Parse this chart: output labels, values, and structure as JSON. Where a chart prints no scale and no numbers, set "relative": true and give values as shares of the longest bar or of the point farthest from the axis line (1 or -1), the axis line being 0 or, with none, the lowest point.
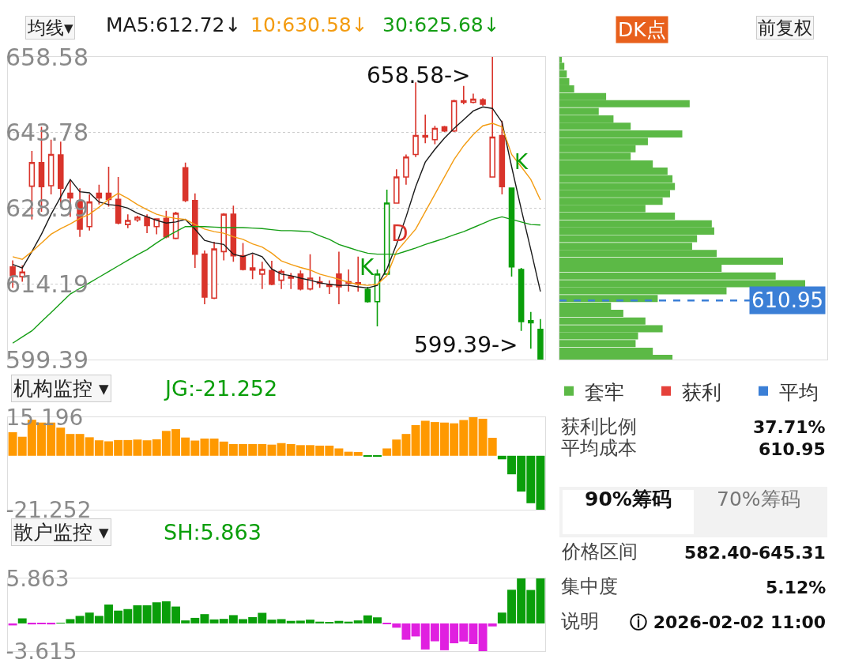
{
  "chart_data": [
    {
      "type": "candlestick",
      "categories": [
        null,
        null,
        null,
        null,
        null,
        null,
        null,
        null,
        null,
        null,
        null,
        null,
        null,
        null,
        null,
        null,
        null,
        null,
        null,
        null,
        null,
        null,
        null,
        null,
        null,
        null,
        null,
        null,
        null,
        null,
        null,
        null,
        null,
        null,
        null,
        null,
        null,
        null,
        null,
        null,
        null,
        null,
        null,
        null,
        null,
        null,
        null,
        null,
        null,
        null,
        null,
        null,
        null,
        null,
        null,
        null
      ],
      "ohlc": [
        [
          617.5,
          618.8,
          613.4,
          615.8
        ],
        [
          615.6,
          617.8,
          614.6,
          616.5
        ],
        [
          633.3,
          640.2,
          626.8,
          637.9
        ],
        [
          637.9,
          644.9,
          628.3,
          633.2
        ],
        [
          633.4,
          642.4,
          631.7,
          639.5
        ],
        [
          639.4,
          642.0,
          629.7,
          632.9
        ],
        [
          631.9,
          634.6,
          627.3,
          631.0
        ],
        [
          630.5,
          632.9,
          623.4,
          624.9
        ],
        [
          625.4,
          631.7,
          624.6,
          630.2
        ],
        [
          631.9,
          633.6,
          629.7,
          631.0
        ],
        [
          631.9,
          637.1,
          629.3,
          630.7
        ],
        [
          630.7,
          635.1,
          625.8,
          626.1
        ],
        [
          625.8,
          627.8,
          625.1,
          626.6
        ],
        [
          626.7,
          627.5,
          626.3,
          627.2
        ],
        [
          627.2,
          627.8,
          624.1,
          625.6
        ],
        [
          625.4,
          627.0,
          623.9,
          626.9
        ],
        [
          627.0,
          628.5,
          623.1,
          623.4
        ],
        [
          623.1,
          628.3,
          622.9,
          628.0
        ],
        [
          636.9,
          637.9,
          630.2,
          630.5
        ],
        [
          630.5,
          631.9,
          617.3,
          620.0
        ],
        [
          620.0,
          620.7,
          610.2,
          611.6
        ],
        [
          611.4,
          622.4,
          611.2,
          621.0
        ],
        [
          620.5,
          628.0,
          618.8,
          627.8
        ],
        [
          627.8,
          629.5,
          618.5,
          619.7
        ],
        [
          619.7,
          622.2,
          616.8,
          617.0
        ],
        [
          616.9,
          620.0,
          615.1,
          617.3
        ],
        [
          616.1,
          618.5,
          613.2,
          617.0
        ],
        [
          616.8,
          618.7,
          613.9,
          614.1
        ],
        [
          614.9,
          617.0,
          613.2,
          616.6
        ],
        [
          615.3,
          616.3,
          613.2,
          615.6
        ],
        [
          616.1,
          616.8,
          612.9,
          613.2
        ],
        [
          613.2,
          620.0,
          612.9,
          615.3
        ],
        [
          614.3,
          615.6,
          613.4,
          614.6
        ],
        [
          614.0,
          614.9,
          612.2,
          613.7
        ],
        [
          616.1,
          620.5,
          610.2,
          613.6
        ],
        [
          614.3,
          617.0,
          612.7,
          614.6
        ],
        [
          614.4,
          619.5,
          612.7,
          614.1
        ],
        [
          613.1,
          613.6,
          610.5,
          610.7
        ],
        [
          610.7,
          617.0,
          605.9,
          616.1
        ],
        [
          616.1,
          632.6,
          616.1,
          630.0
        ],
        [
          630.0,
          636.6,
          630.0,
          635.1
        ],
        [
          635.1,
          639.5,
          633.6,
          639.0
        ],
        [
          639.5,
          653.6,
          639.0,
          643.2
        ],
        [
          642.9,
          647.3,
          641.7,
          643.2
        ],
        [
          642.4,
          645.1,
          641.5,
          644.6
        ],
        [
          644.9,
          645.1,
          643.9,
          644.1
        ],
        [
          644.1,
          650.2,
          643.9,
          650.0
        ],
        [
          649.7,
          652.9,
          649.3,
          650.0
        ],
        [
          649.7,
          651.4,
          649.5,
          650.3
        ],
        [
          650.2,
          650.5,
          649.0,
          649.3
        ],
        [
          635.1,
          658.58,
          635.1,
          642.9
        ],
        [
          643.2,
          646.1,
          631.7,
          633.2
        ],
        [
          632.9,
          632.9,
          615.6,
          617.5
        ],
        [
          617.0,
          617.3,
          605.0,
          606.8
        ],
        [
          607.0,
          608.7,
          601.5,
          606.6
        ],
        [
          605.3,
          607.3,
          599.39,
          599.39
        ]
      ],
      "colors": [
        "#d9342b",
        "#d9342b",
        "#d9342b",
        "#d9342b",
        "#d9342b",
        "#d9342b",
        "#d9342b",
        "#d9342b",
        "#d9342b",
        "#d9342b",
        "#d9342b",
        "#d9342b",
        "#d9342b",
        "#d9342b",
        "#d9342b",
        "#d9342b",
        "#d9342b",
        "#d9342b",
        "#d9342b",
        "#d9342b",
        "#d9342b",
        "#d9342b",
        "#d9342b",
        "#d9342b",
        "#d9342b",
        "#d9342b",
        "#d9342b",
        "#d9342b",
        "#d9342b",
        "#d9342b",
        "#d9342b",
        "#d9342b",
        "#d9342b",
        "#d9342b",
        "#d9342b",
        "#d9342b",
        "#d9342b",
        "#0a9e0a",
        "#0a9e0a",
        "#0a9e0a",
        "#d9342b",
        "#d9342b",
        "#d9342b",
        "#d9342b",
        "#d9342b",
        "#d9342b",
        "#d9342b",
        "#d9342b",
        "#d9342b",
        "#d9342b",
        "#d9342b",
        "#d9342b",
        "#0a9e0a",
        "#0a9e0a",
        "#0a9e0a",
        "#0a9e0a"
      ],
      "series": [
        {
          "name": "MA5:612.72↓",
          "type": "line",
          "color": "#1a1a1a",
          "values": [
            618.0,
            617.3,
            620.5,
            623.9,
            627.8,
            631.2,
            634.6,
            632.2,
            632.0,
            630.2,
            629.7,
            629.5,
            629.0,
            628.0,
            627.3,
            626.6,
            626.1,
            626.3,
            626.8,
            624.9,
            622.7,
            622.2,
            621.9,
            620.0,
            619.5,
            620.2,
            619.5,
            617.1,
            616.1,
            615.8,
            615.3,
            614.9,
            614.4,
            614.1,
            613.9,
            613.9,
            613.6,
            613.4,
            613.9,
            617.1,
            621.9,
            627.3,
            633.2,
            638.0,
            640.5,
            642.7,
            644.6,
            646.3,
            648.0,
            648.8,
            648.5,
            645.8,
            637.1,
            628.8,
            620.9,
            612.7
          ]
        },
        {
          "name": "10:630.58↓",
          "type": "line",
          "color": "#f39c12",
          "values": [
            619.5,
            619.0,
            620.5,
            622.2,
            623.9,
            625.0,
            625.9,
            627.0,
            627.8,
            629.2,
            630.7,
            631.9,
            630.9,
            629.7,
            628.7,
            627.8,
            627.3,
            627.0,
            626.8,
            625.8,
            624.9,
            624.4,
            624.1,
            623.4,
            622.9,
            622.0,
            621.4,
            620.2,
            618.7,
            618.0,
            617.4,
            616.9,
            616.1,
            615.6,
            615.1,
            614.5,
            614.1,
            613.9,
            614.1,
            615.8,
            620.5,
            622.7,
            624.9,
            628.3,
            631.7,
            635.1,
            638.5,
            641.2,
            643.4,
            645.1,
            645.6,
            644.9,
            639.5,
            637.1,
            634.6,
            630.6
          ]
        },
        {
          "name": "30:625.68↓",
          "type": "line",
          "color": "#159e15",
          "values": [
            602.6,
            603.8,
            605.0,
            606.8,
            608.6,
            610.4,
            612.2,
            613.3,
            614.4,
            615.5,
            616.6,
            617.7,
            618.8,
            619.9,
            620.9,
            622.2,
            623.4,
            624.4,
            625.4,
            625.4,
            625.4,
            625.3,
            625.2,
            625.2,
            625.2,
            625.1,
            625.0,
            624.8,
            624.6,
            624.6,
            624.5,
            624.4,
            623.6,
            622.9,
            621.9,
            621.3,
            620.7,
            620.2,
            620.0,
            620.0,
            620.0,
            620.6,
            621.2,
            621.9,
            622.5,
            623.1,
            623.8,
            624.4,
            625.2,
            626.0,
            626.8,
            627.3,
            626.8,
            626.3,
            625.8,
            625.7
          ]
        }
      ],
      "ylim": [
        599.39,
        658.58
      ],
      "yticks": [
        658.58,
        643.78,
        628.99,
        614.19,
        599.39
      ],
      "grid": "y",
      "tick_labels": "y",
      "legend": "top",
      "annotations": [
        "均线▾",
        "658.58->",
        "599.39->",
        "K",
        "D",
        "K",
        "DK点",
        "前复权"
      ]
    },
    {
      "type": "bar",
      "orientation": "horizontal",
      "relative": true,
      "x": [
        658.5,
        657.1,
        655.6,
        654.1,
        652.7,
        651.2,
        649.8,
        648.3,
        646.8,
        645.4,
        643.9,
        642.4,
        641.0,
        639.5,
        638.0,
        636.6,
        635.1,
        633.6,
        632.2,
        630.7,
        629.3,
        627.8,
        626.3,
        624.9,
        623.4,
        621.9,
        620.5,
        619.0,
        617.6,
        616.1,
        614.6,
        613.2,
        611.7,
        610.2,
        608.8,
        607.3,
        605.8,
        604.4,
        602.9,
        601.4,
        600.0
      ],
      "series": [
        {
          "name": "套牢",
          "color": "#5cb946",
          "values": [
            0.01,
            0.02,
            0.03,
            0.04,
            0.06,
            0.19,
            0.53,
            0.16,
            0.22,
            0.29,
            0.5,
            0.36,
            0.31,
            0.29,
            0.38,
            0.44,
            0.46,
            0.47,
            0.45,
            0.42,
            0.35,
            0.47,
            0.62,
            0.63,
            0.56,
            0.54,
            0.64,
            0.91,
            0.66,
            0.88,
            1.0,
            0.68,
            0.4,
            0.21,
            0.26,
            0.35,
            0.42,
            0.32,
            0.31,
            0.38,
            0.46
          ]
        },
        {
          "name": "获利",
          "color": "#e5413a",
          "values": [
            null,
            null,
            null,
            null,
            null,
            null,
            null,
            null,
            null,
            null,
            null,
            null,
            null,
            null,
            null,
            null,
            null,
            null,
            null,
            null,
            null,
            null,
            null,
            null,
            null,
            null,
            null,
            null,
            null,
            null,
            null,
            null,
            null,
            null,
            null,
            null,
            null,
            null,
            null,
            null,
            null
          ]
        },
        {
          "name": "平均",
          "color": "#3b7fd6",
          "values": [
            null,
            null,
            null,
            null,
            null,
            null,
            null,
            null,
            null,
            null,
            null,
            null,
            null,
            null,
            null,
            null,
            null,
            null,
            null,
            null,
            null,
            null,
            null,
            null,
            null,
            null,
            null,
            null,
            null,
            null,
            null,
            null,
            null,
            null,
            null,
            null,
            null,
            null,
            null,
            null,
            null
          ]
        }
      ],
      "ylim": [
        599.39,
        658.58
      ],
      "tick_labels": false,
      "legend": "bottom",
      "ref_lines": [
        {
          "axis": "y",
          "value": 610.95,
          "label": "610.95",
          "color": "#3b7fd6",
          "line_style": "dashed"
        }
      ]
    },
    {
      "type": "bar",
      "title": "机构监控 ▾",
      "categories": [
        null,
        null,
        null,
        null,
        null,
        null,
        null,
        null,
        null,
        null,
        null,
        null,
        null,
        null,
        null,
        null,
        null,
        null,
        null,
        null,
        null,
        null,
        null,
        null,
        null,
        null,
        null,
        null,
        null,
        null,
        null,
        null,
        null,
        null,
        null,
        null,
        null,
        null,
        null,
        null,
        null,
        null,
        null,
        null,
        null,
        null,
        null,
        null,
        null,
        null,
        null,
        null,
        null,
        null,
        null,
        null
      ],
      "series": [
        {
          "name": "JG:-21.252",
          "color": "#0a9e0a",
          "values": [
            9.3,
            7.5,
            14.2,
            13.1,
            13.1,
            11.1,
            8.6,
            8.6,
            7.3,
            6.1,
            5.7,
            6.2,
            6.2,
            6.4,
            6.1,
            6.5,
            9.8,
            10.5,
            7.2,
            6.0,
            6.8,
            6.8,
            5.6,
            4.6,
            4.6,
            4.6,
            4.6,
            4.4,
            5.0,
            4.6,
            4.2,
            4.2,
            4.0,
            4.0,
            2.9,
            1.6,
            1.5,
            -0.1,
            -0.1,
            2.9,
            6.4,
            8.6,
            12.1,
            13.8,
            13.3,
            13.1,
            12.8,
            14.1,
            15.196,
            14.6,
            7.1,
            -1.4,
            -7.3,
            -14.1,
            -18.7,
            -21.252
          ],
          "colors": [
            "#ff9900",
            "#ff9900",
            "#ff9900",
            "#ff9900",
            "#ff9900",
            "#ff9900",
            "#ff9900",
            "#ff9900",
            "#ff9900",
            "#ff9900",
            "#ff9900",
            "#ff9900",
            "#ff9900",
            "#ff9900",
            "#ff9900",
            "#ff9900",
            "#ff9900",
            "#ff9900",
            "#ff9900",
            "#ff9900",
            "#ff9900",
            "#ff9900",
            "#ff9900",
            "#ff9900",
            "#ff9900",
            "#ff9900",
            "#ff9900",
            "#ff9900",
            "#ff9900",
            "#ff9900",
            "#ff9900",
            "#ff9900",
            "#ff9900",
            "#ff9900",
            "#ff9900",
            "#ff9900",
            "#ff9900",
            "#0a9e0a",
            "#0a9e0a",
            "#ff9900",
            "#ff9900",
            "#ff9900",
            "#ff9900",
            "#ff9900",
            "#ff9900",
            "#ff9900",
            "#ff9900",
            "#ff9900",
            "#ff9900",
            "#ff9900",
            "#ff9900",
            "#0a9e0a",
            "#0a9e0a",
            "#0a9e0a",
            "#0a9e0a",
            "#0a9e0a"
          ]
        }
      ],
      "ylim": [
        -21.252,
        15.196
      ],
      "yticks": [
        15.196,
        -21.252
      ],
      "tick_labels": "y",
      "legend": "top left"
    },
    {
      "type": "bar",
      "title": "散户监控 ▾",
      "categories": [
        null,
        null,
        null,
        null,
        null,
        null,
        null,
        null,
        null,
        null,
        null,
        null,
        null,
        null,
        null,
        null,
        null,
        null,
        null,
        null,
        null,
        null,
        null,
        null,
        null,
        null,
        null,
        null,
        null,
        null,
        null,
        null,
        null,
        null,
        null,
        null,
        null,
        null,
        null,
        null,
        null,
        null,
        null,
        null,
        null,
        null,
        null,
        null,
        null,
        null,
        null,
        null,
        null,
        null,
        null,
        null
      ],
      "series": [
        {
          "name": "SH:5.863",
          "color": "#0a9e0a",
          "values": [
            -0.26,
            0.66,
            -0.13,
            -0.07,
            -0.13,
            0.03,
            0.56,
            0.98,
            1.41,
            0.98,
            2.46,
            1.67,
            1.87,
            2.36,
            2.36,
            2.75,
            2.89,
            2.2,
            0.39,
            0.72,
            1.21,
            0.52,
            0.59,
            1.08,
            0.56,
            0.82,
            1.38,
            0.49,
            0.56,
            0.33,
            0.36,
            0.49,
            0.23,
            0.13,
            0.33,
            0.23,
            0.39,
            1.05,
            0.79,
            -0.03,
            -0.56,
            -2.13,
            -1.7,
            -3.4,
            -2.33,
            -3.5,
            -2.59,
            -2.36,
            -2.69,
            -3.615,
            -0.39,
            1.41,
            4.39,
            5.863,
            4.36,
            5.863
          ],
          "colors": [
            "#e020e0",
            "#0a9e0a",
            "#e020e0",
            "#e020e0",
            "#e020e0",
            "#0a9e0a",
            "#0a9e0a",
            "#0a9e0a",
            "#0a9e0a",
            "#0a9e0a",
            "#0a9e0a",
            "#0a9e0a",
            "#0a9e0a",
            "#0a9e0a",
            "#0a9e0a",
            "#0a9e0a",
            "#0a9e0a",
            "#0a9e0a",
            "#0a9e0a",
            "#0a9e0a",
            "#0a9e0a",
            "#0a9e0a",
            "#0a9e0a",
            "#0a9e0a",
            "#0a9e0a",
            "#0a9e0a",
            "#0a9e0a",
            "#0a9e0a",
            "#0a9e0a",
            "#0a9e0a",
            "#0a9e0a",
            "#0a9e0a",
            "#0a9e0a",
            "#0a9e0a",
            "#0a9e0a",
            "#0a9e0a",
            "#0a9e0a",
            "#0a9e0a",
            "#0a9e0a",
            "#e020e0",
            "#e020e0",
            "#e020e0",
            "#e020e0",
            "#e020e0",
            "#e020e0",
            "#e020e0",
            "#e020e0",
            "#e020e0",
            "#e020e0",
            "#e020e0",
            "#e020e0",
            "#0a9e0a",
            "#0a9e0a",
            "#0a9e0a",
            "#0a9e0a",
            "#0a9e0a"
          ]
        }
      ],
      "ylim": [
        -3.615,
        5.863
      ],
      "yticks": [
        5.863,
        -3.615
      ],
      "tick_labels": "y",
      "legend": "top left"
    },
    {
      "type": "other",
      "annotations": [
        "获利比例",
        "37.71%",
        "平均成本",
        "610.95",
        "90%筹码",
        "70%筹码",
        "价格区间",
        "582.40-645.31",
        "集中度",
        "5.12%",
        "说明",
        "ⓘ 2026-02-02 11:00"
      ]
    }
  ]
}
